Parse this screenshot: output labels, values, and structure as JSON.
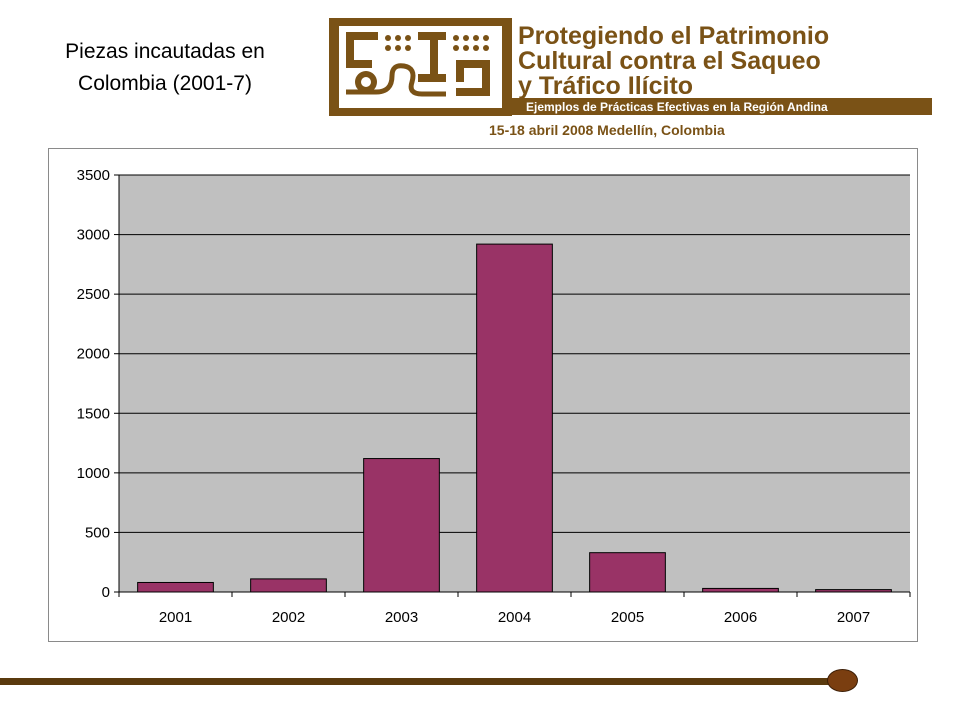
{
  "slide": {
    "title_line1": "Piezas incautadas en",
    "title_line2": "Colombia (2001-7)"
  },
  "banner": {
    "line1": "Protegiendo el Patrimonio",
    "line2": "Cultural contra el Saqueo",
    "line3": "y Tráfico Ilícito",
    "subtitle": "Ejemplos de Prácticas Efectivas en la Región Andina",
    "date": "15-18 abril 2008 Medellín, Colombia"
  },
  "colors": {
    "brand": "#7a5216",
    "bar": "#993366",
    "plot_bg": "#c0c0c0",
    "footer": "#5a3a0e"
  },
  "chart_data": {
    "type": "bar",
    "categories": [
      "2001",
      "2002",
      "2003",
      "2004",
      "2005",
      "2006",
      "2007"
    ],
    "values": [
      80,
      110,
      1120,
      2920,
      330,
      30,
      20
    ],
    "ylim": [
      0,
      3500
    ],
    "yticks": [
      0,
      500,
      1000,
      1500,
      2000,
      2500,
      3000,
      3500
    ],
    "title": "",
    "xlabel": "",
    "ylabel": "",
    "grid": true,
    "legend": false
  }
}
